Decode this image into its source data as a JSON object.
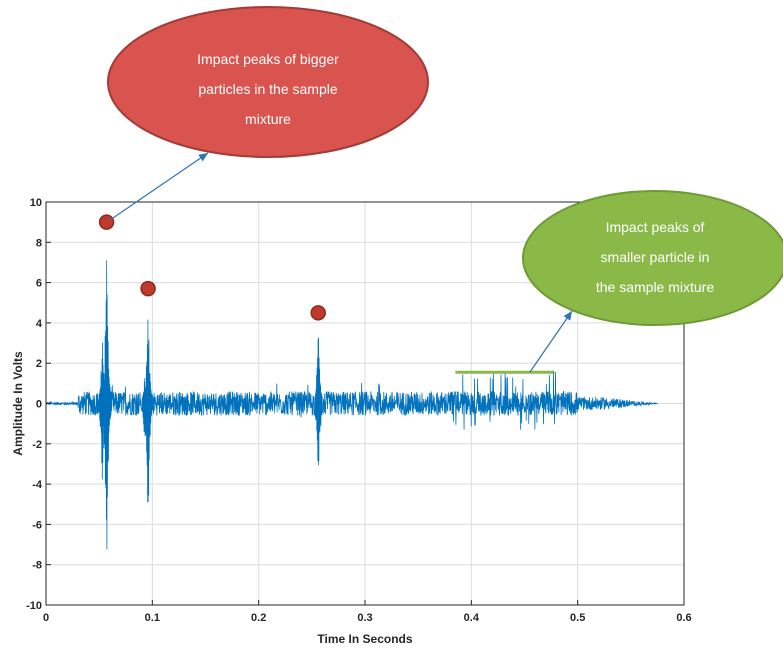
{
  "chart_data": {
    "type": "line",
    "title": "",
    "xlabel": "Time In Seconds",
    "ylabel": "Amplitude In Volts",
    "xlim": [
      0,
      0.6
    ],
    "ylim": [
      -10,
      10
    ],
    "x_ticks": [
      "0",
      "0.1",
      "0.2",
      "0.3",
      "0.4",
      "0.5",
      "0.6"
    ],
    "y_ticks": [
      "10",
      "8",
      "6",
      "4",
      "2",
      "0",
      "-2",
      "-4",
      "-6",
      "-8",
      "-10"
    ],
    "grid": true,
    "series": [
      {
        "color": "#0072bd",
        "signal_end_time": 0.575,
        "background_noise_amplitude": 0.6,
        "spikes": [
          {
            "x": 0.057,
            "max": 8.7,
            "min": -9.2
          },
          {
            "x": 0.053,
            "max": 3.9,
            "min": -4.4
          },
          {
            "x": 0.096,
            "max": 5.5,
            "min": -6.7
          },
          {
            "x": 0.093,
            "max": 1.6,
            "min": -2.6
          },
          {
            "x": 0.256,
            "max": 4.2,
            "min": -4.3
          },
          {
            "x": 0.258,
            "max": 1.2,
            "min": -1.6
          }
        ],
        "small_peak_region": [
          0.38,
          0.48
        ],
        "small_peak_level": 1.5
      }
    ],
    "markers": [
      {
        "x": 0.057,
        "y": 9.0,
        "color": "#c0392b"
      },
      {
        "x": 0.096,
        "y": 5.7,
        "color": "#c0392b"
      },
      {
        "x": 0.256,
        "y": 4.5,
        "color": "#c0392b"
      }
    ],
    "annotations": [
      {
        "text": [
          "Impact peaks of bigger",
          "particles in the sample",
          "mixture"
        ],
        "fill": "#d9534f",
        "stroke": "#a33b37"
      },
      {
        "text": [
          "Impact peaks of",
          "smaller particle in",
          "the sample mixture"
        ],
        "fill": "#8bb948",
        "stroke": "#6e9a35"
      }
    ],
    "highlight_line": {
      "x": [
        0.385,
        0.478
      ],
      "y": 1.55,
      "color": "#8bb948"
    }
  }
}
